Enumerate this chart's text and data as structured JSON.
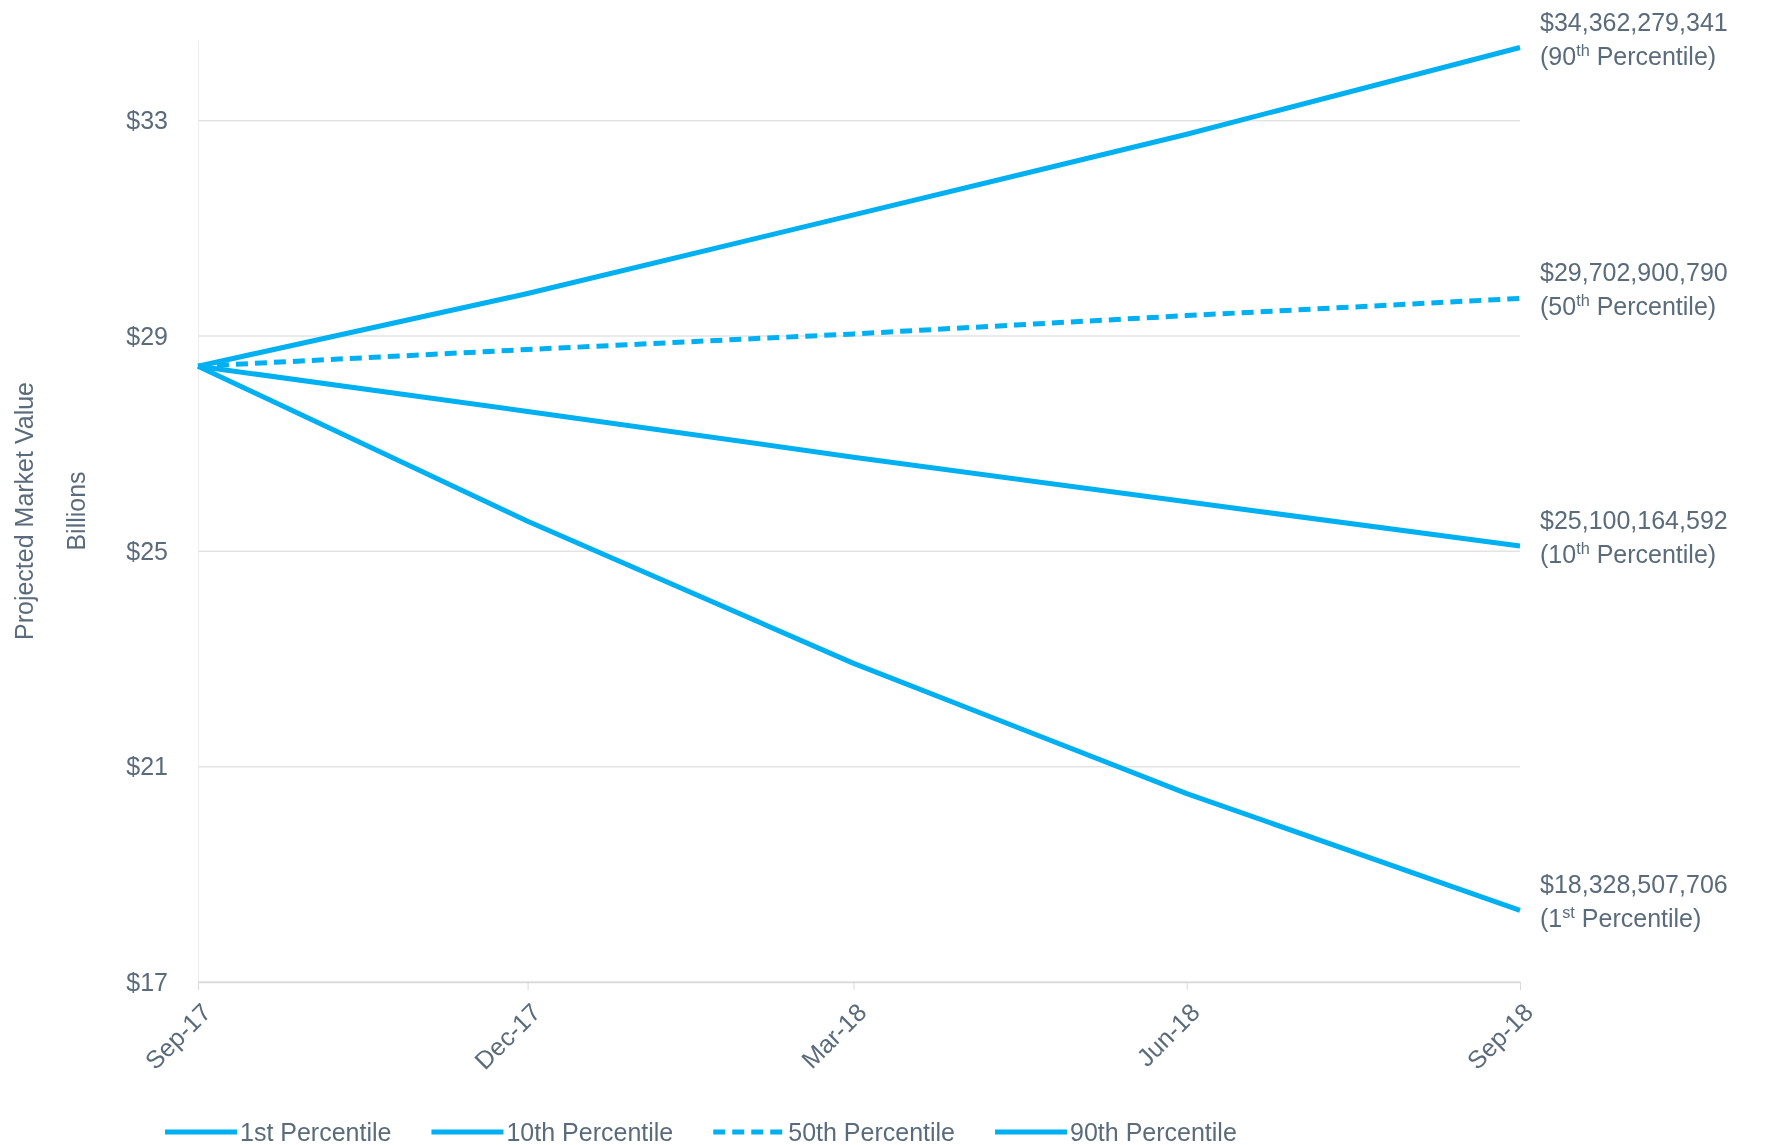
{
  "chart_data": {
    "type": "line",
    "ylabel": "Projected Market Value\nBillions",
    "x": [
      "2017-09",
      "2017-12",
      "2018-03",
      "2018-06",
      "2018-09"
    ],
    "xlim": [
      "2017-09",
      "2018-09"
    ],
    "xticks": [
      {
        "value": "2017-09",
        "label": "Sep-17"
      },
      {
        "value": "2017-12",
        "label": "Dec-17"
      },
      {
        "value": "2018-03",
        "label": "Mar-18"
      },
      {
        "value": "2018-06",
        "label": "Jun-18"
      },
      {
        "value": "2018-09",
        "label": "Sep-18"
      }
    ],
    "ylim": [
      17,
      34.5
    ],
    "yticks": [
      {
        "value": 17,
        "label": "$17"
      },
      {
        "value": 21,
        "label": "$21"
      },
      {
        "value": 25,
        "label": "$25"
      },
      {
        "value": 29,
        "label": "$29"
      },
      {
        "value": 33,
        "label": "$33"
      }
    ],
    "grid": "y",
    "legend": "bottom",
    "marker": "none",
    "series": [
      {
        "name": "1st Percentile",
        "color": "#00b0f0",
        "values": [
          28.44,
          25.56,
          22.92,
          20.5,
          18.33
        ]
      },
      {
        "name": "10th Percentile",
        "color": "#00b0f0",
        "values": [
          28.44,
          27.6,
          26.75,
          25.92,
          25.1
        ]
      },
      {
        "name": "50th Percentile",
        "color": "#00b0f0",
        "line_style": "dashed",
        "values": [
          28.44,
          28.75,
          29.04,
          29.38,
          29.7
        ]
      },
      {
        "name": "90th Percentile",
        "color": "#00b0f0",
        "values": [
          28.44,
          29.79,
          31.25,
          32.75,
          34.36
        ]
      }
    ],
    "annotations": [
      {
        "text": "$34,362,279,341\n(90$^{th}$ Percentile)",
        "x": "2018-09",
        "y": 34.36
      },
      {
        "text": "$29,702,900,790\n(50$^{th}$ Percentile)",
        "x": "2018-09",
        "y": 29.7
      },
      {
        "text": "$25,100,164,592\n(10$^{th}$ Percentile)",
        "x": "2018-09",
        "y": 25.1
      },
      {
        "text": "$18,328,507,706\n(1$^{st}$ Percentile)",
        "x": "2018-09",
        "y": 18.33
      }
    ]
  }
}
